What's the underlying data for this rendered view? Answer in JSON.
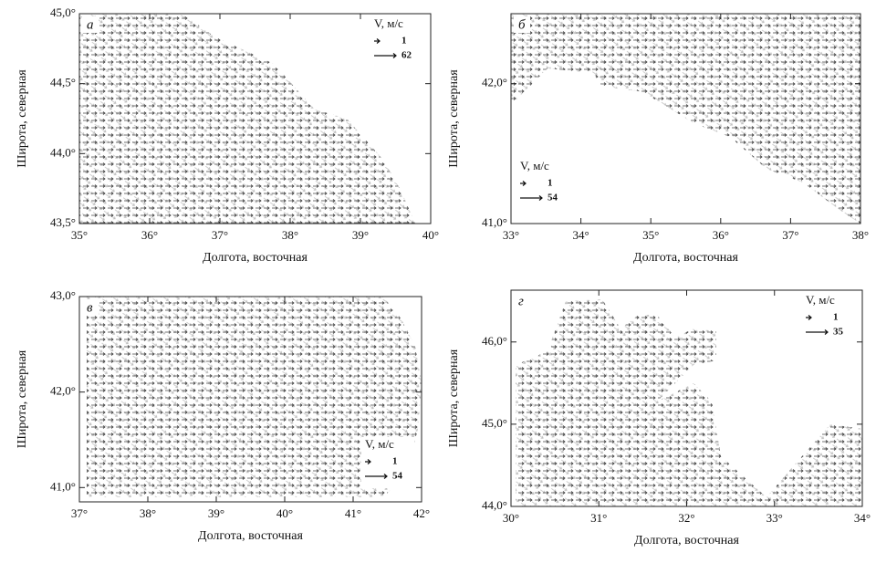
{
  "chart_data": [
    {
      "type": "quiver",
      "panel_label": "а",
      "xlabel": "Долгота, восточная",
      "ylabel": "Широта, северная",
      "xlim": [
        35,
        40
      ],
      "ylim": [
        43.5,
        45.0
      ],
      "xticks": [
        {
          "value": 35,
          "label": "35°"
        },
        {
          "value": 36,
          "label": "36°"
        },
        {
          "value": 37,
          "label": "37°"
        },
        {
          "value": 38,
          "label": "38°"
        },
        {
          "value": 39,
          "label": "39°"
        },
        {
          "value": 40,
          "label": "40°"
        }
      ],
      "yticks": [
        {
          "value": 43.5,
          "label": "43,5°"
        },
        {
          "value": 44.0,
          "label": "44,0°"
        },
        {
          "value": 44.5,
          "label": "44,5°"
        },
        {
          "value": 45.0,
          "label": "45,0°"
        }
      ],
      "legend_title": "V, м/с",
      "reference_vectors": [
        1,
        62
      ],
      "legend_position": "upper right"
    },
    {
      "type": "quiver",
      "panel_label": "б",
      "xlabel": "Долгота, восточная",
      "ylabel": "Широта, северная",
      "xlim": [
        33,
        38
      ],
      "ylim": [
        41.0,
        42.5
      ],
      "xticks": [
        {
          "value": 33,
          "label": "33°"
        },
        {
          "value": 34,
          "label": "34°"
        },
        {
          "value": 35,
          "label": "35°"
        },
        {
          "value": 36,
          "label": "36°"
        },
        {
          "value": 37,
          "label": "37°"
        },
        {
          "value": 38,
          "label": "38°"
        }
      ],
      "yticks": [
        {
          "value": 41.0,
          "label": "41,0°"
        },
        {
          "value": 42.0,
          "label": "42,0°"
        }
      ],
      "legend_title": "V, м/с",
      "reference_vectors": [
        1,
        54
      ],
      "legend_position": "lower left"
    },
    {
      "type": "quiver",
      "panel_label": "в",
      "xlabel": "Долгота, восточная",
      "ylabel": "Широта, северная",
      "xlim": [
        37,
        42
      ],
      "ylim": [
        40.85,
        43.0
      ],
      "xticks": [
        {
          "value": 37,
          "label": "37°"
        },
        {
          "value": 38,
          "label": "38°"
        },
        {
          "value": 39,
          "label": "39°"
        },
        {
          "value": 40,
          "label": "40°"
        },
        {
          "value": 41,
          "label": "41°"
        },
        {
          "value": 42,
          "label": "42°"
        }
      ],
      "yticks": [
        {
          "value": 41.0,
          "label": "41,0°"
        },
        {
          "value": 42.0,
          "label": "42,0°"
        },
        {
          "value": 43.0,
          "label": "43,0°"
        }
      ],
      "legend_title": "V, м/с",
      "reference_vectors": [
        1,
        54
      ],
      "legend_position": "lower right"
    },
    {
      "type": "quiver",
      "panel_label": "г",
      "xlabel": "Долгота, восточная",
      "ylabel": "Широта, северная",
      "xlim": [
        30,
        34
      ],
      "ylim": [
        44.0,
        46.63
      ],
      "xticks": [
        {
          "value": 30,
          "label": "30°"
        },
        {
          "value": 31,
          "label": "31°"
        },
        {
          "value": 32,
          "label": "32°"
        },
        {
          "value": 33,
          "label": "33°"
        },
        {
          "value": 34,
          "label": "34°"
        }
      ],
      "yticks": [
        {
          "value": 44.0,
          "label": "44,0°"
        },
        {
          "value": 45.0,
          "label": "45,0°"
        },
        {
          "value": 46.0,
          "label": "46,0°"
        }
      ],
      "legend_title": "V, м/с",
      "reference_vectors": [
        1,
        35
      ],
      "legend_position": "upper right"
    }
  ]
}
